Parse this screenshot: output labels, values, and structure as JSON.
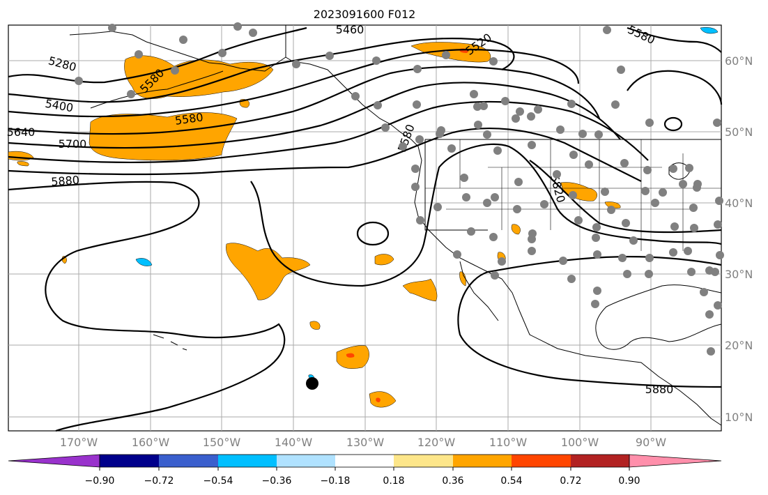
{
  "title": "2023091600 F012",
  "longitude_labels": [
    "170°W",
    "160°W",
    "150°W",
    "140°W",
    "130°W",
    "120°W",
    "110°W",
    "100°W",
    "90°W"
  ],
  "latitude_labels": [
    "60°N",
    "50°N",
    "40°N",
    "30°N",
    "20°N",
    "10°N"
  ],
  "contour_labels": [
    "5460",
    "5520",
    "5280",
    "5400",
    "5580",
    "5700",
    "5640",
    "5880",
    "5880",
    "5820",
    "5580",
    "5580",
    "5580"
  ],
  "colorbar": {
    "tick_labels": [
      "−0.90",
      "−0.72",
      "−0.54",
      "−0.36",
      "−0.18",
      "0.18",
      "0.36",
      "0.54",
      "0.72",
      "0.90"
    ],
    "colors": [
      "#9932cc",
      "#00008b",
      "#3a5fcd",
      "#00bfff",
      "#b0e2ff",
      "#ffffff",
      "#fde68a",
      "#ffa500",
      "#ff4500",
      "#b22222",
      "#ff8fab"
    ]
  },
  "shading_colors": {
    "positive_light": "#ffa500",
    "positive_strong": "#ff4500",
    "negative_light": "#00bfff",
    "land_outline": "#000000",
    "stations": "#808080"
  }
}
